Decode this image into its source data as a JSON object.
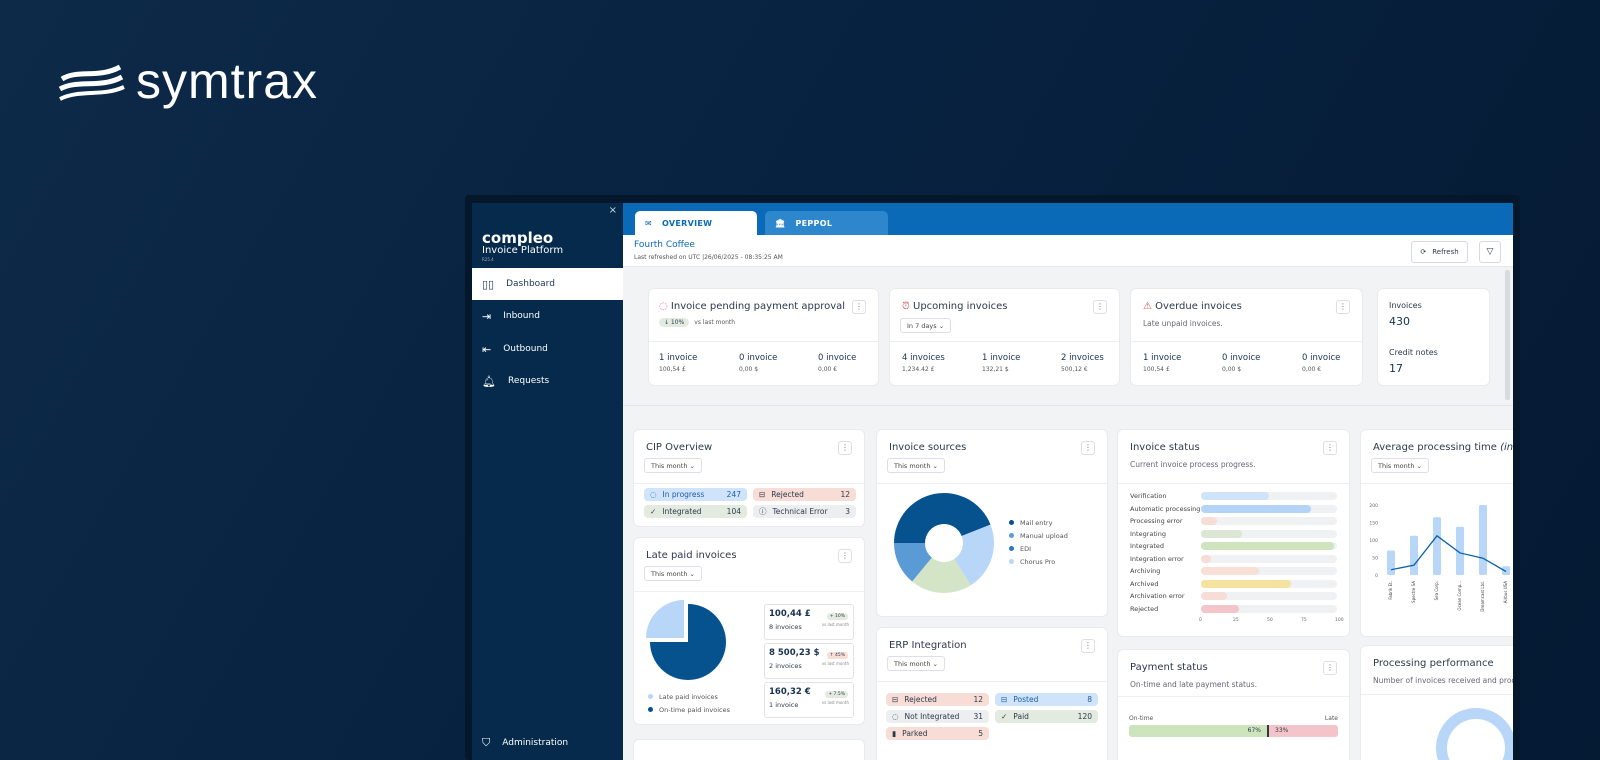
{
  "brand": {
    "name": "symtrax"
  },
  "sidebar": {
    "logo_line1": "compleo",
    "logo_line2": "Invoice Platform",
    "version": "R25.4",
    "close": "×",
    "items": [
      {
        "label": "Dashboard",
        "icon": "bar-chart-icon",
        "active": true
      },
      {
        "label": "Inbound",
        "icon": "inbound-icon"
      },
      {
        "label": "Outbound",
        "icon": "outbound-icon"
      },
      {
        "label": "Requests",
        "icon": "bell-icon"
      }
    ],
    "footer_item": {
      "label": "Administration",
      "icon": "shield-icon"
    }
  },
  "tabs": [
    {
      "label": "OVERVIEW",
      "icon": "mail-icon",
      "active": true
    },
    {
      "label": "PEPPOL",
      "icon": "bank-icon"
    }
  ],
  "header": {
    "company": "Fourth Coffee",
    "refreshed": "Last refreshed on UTC |26/06/2025 - 08:35:25 AM",
    "refresh_label": "Refresh"
  },
  "summary": {
    "pending": {
      "title": "Invoice pending payment approval",
      "trend": "↓ 10%",
      "trend_note": "vs last month",
      "cols": [
        {
          "count": "1 invoice",
          "amount": "100,54 £"
        },
        {
          "count": "0 invoice",
          "amount": "0,00 $"
        },
        {
          "count": "0 invoice",
          "amount": "0,00 €"
        }
      ]
    },
    "upcoming": {
      "title": "Upcoming invoices",
      "period": "In 7 days",
      "cols": [
        {
          "count": "4 invoices",
          "amount": "1,234.42 £"
        },
        {
          "count": "1 invoice",
          "amount": "132,21 $"
        },
        {
          "count": "2 invoices",
          "amount": "500,12 €"
        }
      ]
    },
    "overdue": {
      "title": "Overdue invoices",
      "subtitle": "Late unpaid invoices.",
      "cols": [
        {
          "count": "1 invoice",
          "amount": "100,54 £"
        },
        {
          "count": "0 invoice",
          "amount": "0,00 $"
        },
        {
          "count": "0 invoice",
          "amount": "0,00 €"
        }
      ]
    },
    "totals": {
      "invoices_label": "Invoices",
      "invoices": "430",
      "credit_label": "Credit notes",
      "credit": "17"
    }
  },
  "cip": {
    "title": "CIP Overview",
    "period": "This month",
    "chips": [
      {
        "label": "In progress",
        "count": "247",
        "color": "#cfe3fb"
      },
      {
        "label": "Rejected",
        "count": "12",
        "color": "#f8dcd6"
      },
      {
        "label": "Integrated",
        "count": "104",
        "color": "#e3ebe0"
      },
      {
        "label": "Technical Error",
        "count": "3",
        "color": "#eceef0"
      }
    ]
  },
  "late_paid": {
    "title": "Late paid invoices",
    "period": "This month",
    "legend": [
      {
        "label": "Late paid invoices",
        "value": 25,
        "color": "#b8d6f7"
      },
      {
        "label": "On-time paid invoices",
        "value": 75,
        "color": "#05528f"
      }
    ],
    "cards": [
      {
        "amount": "100,44 £",
        "count": "8 invoices",
        "trend": "+ 10%",
        "up_good": true
      },
      {
        "amount": "8 500,23 $",
        "count": "2 invoices",
        "trend": "↑ 45%",
        "up_good": false
      },
      {
        "amount": "160,32 €",
        "count": "1 invoice",
        "trend": "+ 7.5%",
        "up_good": true
      }
    ],
    "vs": "vs last month"
  },
  "sources": {
    "title": "Invoice sources",
    "period": "This month",
    "legend": [
      {
        "label": "Mail entry",
        "color": "#05528f"
      },
      {
        "label": "Manual upload",
        "color": "#5b9bd5"
      },
      {
        "label": "EDI",
        "color": "#2c78b8"
      },
      {
        "label": "Chorus Pro",
        "color": "#b8d6f7"
      }
    ],
    "slices": [
      {
        "value": 44,
        "color": "#05528f"
      },
      {
        "value": 22,
        "color": "#b8d6f7"
      },
      {
        "value": 20,
        "color": "#d4e5c7"
      },
      {
        "value": 14,
        "color": "#5b9bd5"
      }
    ]
  },
  "erp": {
    "title": "ERP Integration",
    "period": "This month",
    "chips": [
      {
        "label": "Rejected",
        "count": "12",
        "color": "#f8dcd6"
      },
      {
        "label": "Posted",
        "count": "8",
        "color": "#cfe3fb"
      },
      {
        "label": "Not Integrated",
        "count": "31",
        "color": "#eceef0"
      },
      {
        "label": "Paid",
        "count": "120",
        "color": "#e3ebe0"
      },
      {
        "label": "Parked",
        "count": "5",
        "color": "#f8dcd6"
      }
    ]
  },
  "status": {
    "title": "Invoice status",
    "subtitle": "Current invoice process progress.",
    "ticks": [
      "0",
      "25",
      "50",
      "75",
      "100"
    ],
    "bars": [
      {
        "label": "Verification",
        "value": 50,
        "color": "#cfe3fb"
      },
      {
        "label": "Automatic processing",
        "value": 81,
        "color": "#b3d4f7"
      },
      {
        "label": "Processing error",
        "value": 12,
        "color": "#f8dcd6"
      },
      {
        "label": "Integrating",
        "value": 30,
        "color": "#dbe6d5"
      },
      {
        "label": "Integrated",
        "value": 98,
        "color": "#cde4bd"
      },
      {
        "label": "Integration error",
        "value": 7,
        "color": "#f8dcd6"
      },
      {
        "label": "Archiving",
        "value": 43,
        "color": "#f8e0d6"
      },
      {
        "label": "Archived",
        "value": 66,
        "color": "#f6e2a0"
      },
      {
        "label": "Archivation error",
        "value": 19,
        "color": "#f8dcd6"
      },
      {
        "label": "Rejected",
        "value": 28,
        "color": "#f3c5cb"
      }
    ]
  },
  "payment": {
    "title": "Payment status",
    "subtitle": "On-time and late payment status.",
    "ontime_label": "On-time",
    "late_label": "Late",
    "ontime": 67,
    "late": 33,
    "ontime_text": "67%",
    "late_text": "33%"
  },
  "chart_data": {
    "type": "bar",
    "title": "Average processing time",
    "title_unit": "(in days)",
    "period": "This month",
    "categories": [
      "Fabrik Et.",
      "Spectre SA",
      "Sea Corp.",
      "Ocean Comp...",
      "Dreamcast Ltd.",
      "Airbus USA"
    ],
    "series": [
      {
        "type": "bar",
        "values": [
          70,
          112,
          165,
          138,
          200,
          25
        ]
      },
      {
        "type": "line",
        "values": [
          15,
          28,
          112,
          63,
          48,
          10
        ]
      }
    ],
    "yticks": [
      "0",
      "50",
      "100",
      "150",
      "200"
    ],
    "ylim": [
      0,
      200
    ]
  },
  "performance": {
    "title": "Processing performance",
    "subtitle": "Number of invoices received and processed"
  }
}
